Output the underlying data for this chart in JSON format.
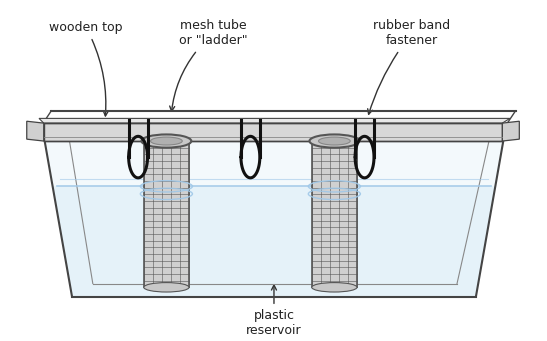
{
  "background_color": "#ffffff",
  "labels": {
    "wooden_top": "wooden top",
    "mesh_tube": "mesh tube\nor \"ladder\"",
    "rubber_band": "rubber band\nfastener",
    "plastic_reservoir": "plastic\nreservoir"
  },
  "colors": {
    "outline": "#444444",
    "outline_thin": "#888888",
    "board_fill": "#f0f0f0",
    "board_top": "#e0e0e0",
    "reservoir_fill": "#e8f4fb",
    "water_fill": "#d0e8f5",
    "water_line": "#a0c8e8",
    "mesh_fill": "#c8c8c8",
    "mesh_dark": "#555555",
    "mesh_line": "#777777",
    "rubber_band": "#111111",
    "text_color": "#222222",
    "arrow_color": "#333333",
    "hole_fill": "#d8d8d8",
    "hole_outline": "#888888"
  },
  "figsize": [
    5.47,
    3.41
  ],
  "dpi": 100
}
